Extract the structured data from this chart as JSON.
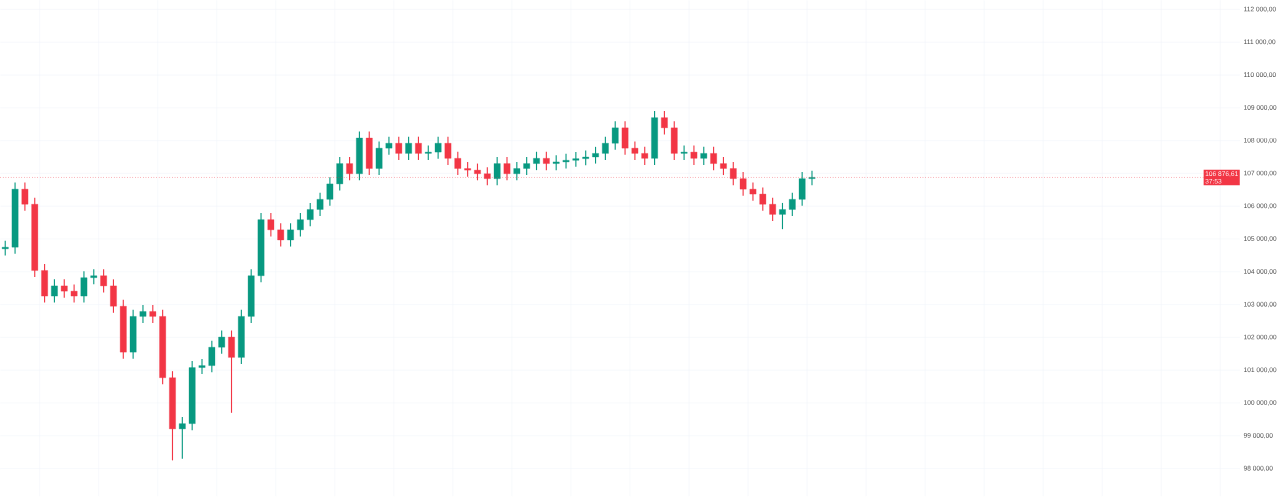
{
  "chart_data": {
    "type": "candlestick",
    "categories": [
      null,
      null,
      null,
      null,
      null,
      null,
      null,
      null,
      null,
      null,
      null,
      null,
      null,
      null,
      null,
      null,
      null,
      null,
      null,
      null,
      null,
      null,
      null,
      null,
      null,
      null,
      null,
      null,
      null,
      null,
      null,
      null,
      null,
      null,
      null,
      null,
      null,
      null,
      null,
      null,
      null,
      null,
      null,
      null,
      null,
      null,
      null,
      null,
      null,
      null,
      null,
      null,
      null,
      null,
      null,
      null,
      null,
      null,
      null,
      null,
      null,
      null,
      null,
      null,
      null,
      null,
      null,
      null,
      null,
      null,
      null,
      null,
      null,
      null,
      null,
      null,
      null,
      null,
      null,
      null,
      null,
      null,
      null,
      null,
      null,
      null,
      null,
      null,
      null,
      null,
      null,
      null,
      null,
      null,
      null,
      null,
      null,
      null,
      null,
      null,
      null,
      null,
      null,
      null,
      null,
      null,
      null,
      null,
      null,
      null,
      null,
      null,
      null,
      null,
      null,
      null,
      null,
      null,
      null,
      null,
      null,
      null,
      null,
      null,
      null,
      null
    ],
    "ohlc": [
      [
        104700,
        104950,
        104500,
        104750
      ],
      [
        104750,
        106720,
        104550,
        106520
      ],
      [
        106520,
        106720,
        105860,
        106060
      ],
      [
        106060,
        106260,
        103840,
        104040
      ],
      [
        104040,
        104240,
        103060,
        103260
      ],
      [
        103260,
        103770,
        103060,
        103570
      ],
      [
        103570,
        103770,
        103210,
        103410
      ],
      [
        103410,
        103610,
        103060,
        103260
      ],
      [
        103260,
        104020,
        103060,
        103820
      ],
      [
        103820,
        104080,
        103620,
        103880
      ],
      [
        103880,
        104080,
        103370,
        103570
      ],
      [
        103570,
        103770,
        102750,
        102950
      ],
      [
        102950,
        103150,
        101350,
        101550
      ],
      [
        101550,
        102840,
        101350,
        102640
      ],
      [
        102640,
        102990,
        102440,
        102790
      ],
      [
        102790,
        102990,
        102440,
        102640
      ],
      [
        102640,
        102840,
        100570,
        100770
      ],
      [
        100770,
        100970,
        98250,
        99210
      ],
      [
        99210,
        99570,
        98300,
        99370
      ],
      [
        99370,
        101280,
        99170,
        101080
      ],
      [
        101080,
        101340,
        100880,
        101140
      ],
      [
        101140,
        101900,
        100940,
        101700
      ],
      [
        101700,
        102210,
        101500,
        102010
      ],
      [
        102010,
        102210,
        99700,
        101390
      ],
      [
        101390,
        102840,
        101190,
        102640
      ],
      [
        102640,
        104080,
        102440,
        103880
      ],
      [
        103880,
        105790,
        103680,
        105590
      ],
      [
        105590,
        105790,
        105080,
        105280
      ],
      [
        105280,
        105480,
        104770,
        104970
      ],
      [
        104970,
        105480,
        104770,
        105280
      ],
      [
        105280,
        105790,
        105080,
        105590
      ],
      [
        105590,
        106100,
        105390,
        105900
      ],
      [
        105900,
        106410,
        105700,
        106210
      ],
      [
        106210,
        106880,
        106010,
        106680
      ],
      [
        106680,
        107500,
        106480,
        107300
      ],
      [
        107300,
        107500,
        106790,
        106990
      ],
      [
        106990,
        108280,
        106790,
        108080
      ],
      [
        108080,
        108280,
        106950,
        107150
      ],
      [
        107150,
        107970,
        106950,
        107770
      ],
      [
        107770,
        108120,
        107570,
        107920
      ],
      [
        107920,
        108120,
        107410,
        107610
      ],
      [
        107610,
        108120,
        107410,
        107920
      ],
      [
        107920,
        108120,
        107410,
        107610
      ],
      [
        107610,
        107850,
        107410,
        107650
      ],
      [
        107650,
        108120,
        107450,
        107920
      ],
      [
        107920,
        108120,
        107260,
        107460
      ],
      [
        107460,
        107660,
        106950,
        107150
      ],
      [
        107150,
        107350,
        106900,
        107100
      ],
      [
        107100,
        107300,
        106790,
        106990
      ],
      [
        106990,
        107190,
        106640,
        106840
      ],
      [
        106840,
        107500,
        106640,
        107300
      ],
      [
        107300,
        107500,
        106790,
        106990
      ],
      [
        106990,
        107350,
        106790,
        107150
      ],
      [
        107150,
        107500,
        106950,
        107300
      ],
      [
        107300,
        107660,
        107100,
        107460
      ],
      [
        107460,
        107660,
        107100,
        107300
      ],
      [
        107300,
        107550,
        107100,
        107350
      ],
      [
        107350,
        107600,
        107150,
        107400
      ],
      [
        107400,
        107650,
        107200,
        107450
      ],
      [
        107450,
        107700,
        107250,
        107500
      ],
      [
        107500,
        107810,
        107300,
        107610
      ],
      [
        107610,
        108120,
        107410,
        107920
      ],
      [
        107920,
        108590,
        107720,
        108390
      ],
      [
        108390,
        108590,
        107570,
        107770
      ],
      [
        107770,
        107970,
        107410,
        107610
      ],
      [
        107610,
        107810,
        107260,
        107460
      ],
      [
        107460,
        108900,
        107260,
        108700
      ],
      [
        108700,
        108900,
        108190,
        108390
      ],
      [
        108390,
        108590,
        107410,
        107610
      ],
      [
        107610,
        107850,
        107410,
        107650
      ],
      [
        107650,
        107850,
        107260,
        107460
      ],
      [
        107460,
        107810,
        107260,
        107610
      ],
      [
        107610,
        107810,
        107100,
        107300
      ],
      [
        107300,
        107500,
        106950,
        107150
      ],
      [
        107150,
        107350,
        106640,
        106840
      ],
      [
        106840,
        107040,
        106320,
        106520
      ],
      [
        106520,
        106720,
        106170,
        106370
      ],
      [
        106370,
        106570,
        105860,
        106060
      ],
      [
        106060,
        106260,
        105550,
        105750
      ],
      [
        105750,
        106100,
        105300,
        105900
      ],
      [
        105900,
        106410,
        105700,
        106210
      ],
      [
        106210,
        107040,
        106010,
        106840
      ],
      [
        106840,
        107080,
        106640,
        106880
      ],
      null,
      null,
      null,
      null,
      null,
      null,
      null,
      null,
      null,
      null,
      null,
      null,
      null,
      null,
      null,
      null,
      null,
      null,
      null,
      null,
      null,
      null,
      null,
      null,
      null,
      null,
      null,
      null,
      null,
      null,
      null,
      null,
      null,
      null,
      null,
      null,
      null,
      null,
      null,
      null,
      null,
      null,
      null
    ],
    "colors": [
      "#089981",
      "#089981",
      "#f23645",
      "#f23645",
      "#f23645",
      "#089981",
      "#f23645",
      "#f23645",
      "#089981",
      "#089981",
      "#f23645",
      "#f23645",
      "#f23645",
      "#089981",
      "#089981",
      "#f23645",
      "#f23645",
      "#f23645",
      "#089981",
      "#089981",
      "#089981",
      "#089981",
      "#089981",
      "#f23645",
      "#089981",
      "#089981",
      "#089981",
      "#f23645",
      "#f23645",
      "#089981",
      "#089981",
      "#089981",
      "#089981",
      "#089981",
      "#089981",
      "#f23645",
      "#089981",
      "#f23645",
      "#089981",
      "#089981",
      "#f23645",
      "#089981",
      "#f23645",
      "#089981",
      "#089981",
      "#f23645",
      "#f23645",
      "#f23645",
      "#f23645",
      "#f23645",
      "#089981",
      "#f23645",
      "#089981",
      "#089981",
      "#089981",
      "#f23645",
      "#089981",
      "#089981",
      "#089981",
      "#089981",
      "#089981",
      "#089981",
      "#089981",
      "#f23645",
      "#f23645",
      "#f23645",
      "#089981",
      "#f23645",
      "#f23645",
      "#089981",
      "#f23645",
      "#089981",
      "#f23645",
      "#f23645",
      "#f23645",
      "#f23645",
      "#f23645",
      "#f23645",
      "#f23645",
      "#089981",
      "#089981",
      "#089981",
      "#089981",
      null,
      null,
      null,
      null,
      null,
      null,
      null,
      null,
      null,
      null,
      null,
      null,
      null,
      null,
      null,
      null,
      null,
      null,
      null,
      null,
      null,
      null,
      null,
      null,
      null,
      null,
      null,
      null,
      null,
      null,
      null,
      null,
      null,
      null,
      null,
      null,
      null,
      null,
      null,
      null,
      null,
      null,
      null
    ],
    "ylim": [
      97160,
      112280
    ],
    "yticks": [
      {
        "value": 98000,
        "label": "98 000,00"
      },
      {
        "value": 99000,
        "label": "99 000,00"
      },
      {
        "value": 100000,
        "label": "100 000,00"
      },
      {
        "value": 101000,
        "label": "101 000,00"
      },
      {
        "value": 102000,
        "label": "102 000,00"
      },
      {
        "value": 103000,
        "label": "103 000,00"
      },
      {
        "value": 104000,
        "label": "104 000,00"
      },
      {
        "value": 105000,
        "label": "105 000,00"
      },
      {
        "value": 106000,
        "label": "106 000,00"
      },
      {
        "value": 107000,
        "label": "107 000,00"
      },
      {
        "value": 108000,
        "label": "108 000,00"
      },
      {
        "value": 109000,
        "label": "109 000,00"
      },
      {
        "value": 110000,
        "label": "110 000,00"
      },
      {
        "value": 111000,
        "label": "111 000,00"
      },
      {
        "value": 112000,
        "label": "112 000,00"
      }
    ],
    "grid": true,
    "ref_lines": [
      {
        "axis": "y",
        "value": 106876.61,
        "label": "106 876,61",
        "color": "#f23645",
        "line_style": "dotted"
      }
    ],
    "annotations": [
      "37:53"
    ]
  }
}
